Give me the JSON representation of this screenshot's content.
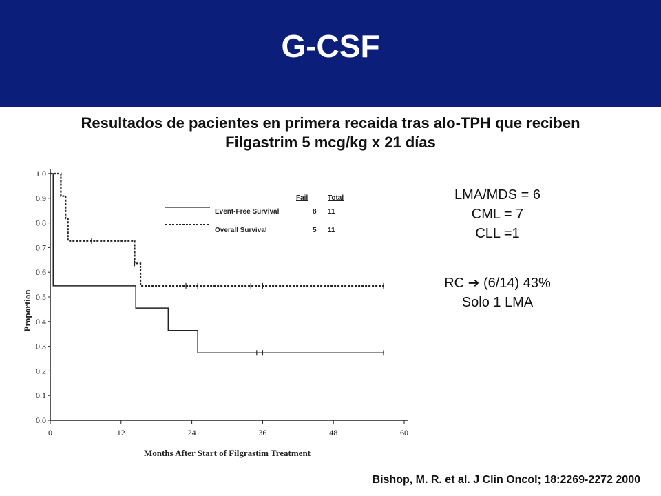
{
  "header": {
    "title": "G-CSF"
  },
  "subtitle": {
    "line1": "Resultados de pacientes en primera recaida tras alo-TPH que reciben",
    "line2": "Filgastrim 5 mcg/kg x 21 días"
  },
  "info": {
    "lines": [
      "LMA/MDS = 6",
      "CML = 7",
      "CLL =1"
    ],
    "response": [
      "RC  (6/14) 43%",
      "Solo 1 LMA"
    ],
    "arrow_icon": "right-arrow-icon"
  },
  "citation": "Bishop, M. R. et al. J Clin Oncol; 18:2269-2272 2000",
  "colors": {
    "header_bg": "#0b1f7a",
    "header_text": "#ffffff",
    "line": "#222222"
  },
  "chart_data": {
    "type": "line",
    "title": "",
    "xlabel": "Months After Start of Filgrastim Treatment",
    "ylabel": "Proportion",
    "xlim": [
      0,
      60
    ],
    "ylim": [
      0,
      1.0
    ],
    "x_ticks": [
      "0",
      "12",
      "24",
      "36",
      "48",
      "60"
    ],
    "y_ticks": [
      "0.0",
      "0.1",
      "0.2",
      "0.3",
      "0.4",
      "0.5",
      "0.6",
      "0.7",
      "0.8",
      "0.9",
      "1.0"
    ],
    "legend": {
      "headers": [
        "Fail",
        "Total"
      ],
      "position": "top-right"
    },
    "series": [
      {
        "name": "Event-Free Survival",
        "style": "solid",
        "fail": "8",
        "total": "11",
        "steps": [
          [
            0,
            1.0
          ],
          [
            0.5,
            0.545
          ],
          [
            14.5,
            0.455
          ],
          [
            20,
            0.364
          ],
          [
            25,
            0.273
          ],
          [
            56.5,
            0.273
          ]
        ],
        "censored": [
          35,
          36,
          56.5
        ]
      },
      {
        "name": "Overall Survival",
        "style": "dashed",
        "fail": "5",
        "total": "11",
        "steps": [
          [
            0,
            1.0
          ],
          [
            1.8,
            0.909
          ],
          [
            2.6,
            0.818
          ],
          [
            3.0,
            0.727
          ],
          [
            14.3,
            0.636
          ],
          [
            15.3,
            0.545
          ],
          [
            56.5,
            0.545
          ]
        ],
        "censored": [
          7,
          14.3,
          23,
          25,
          34,
          36,
          56.5
        ]
      }
    ]
  }
}
